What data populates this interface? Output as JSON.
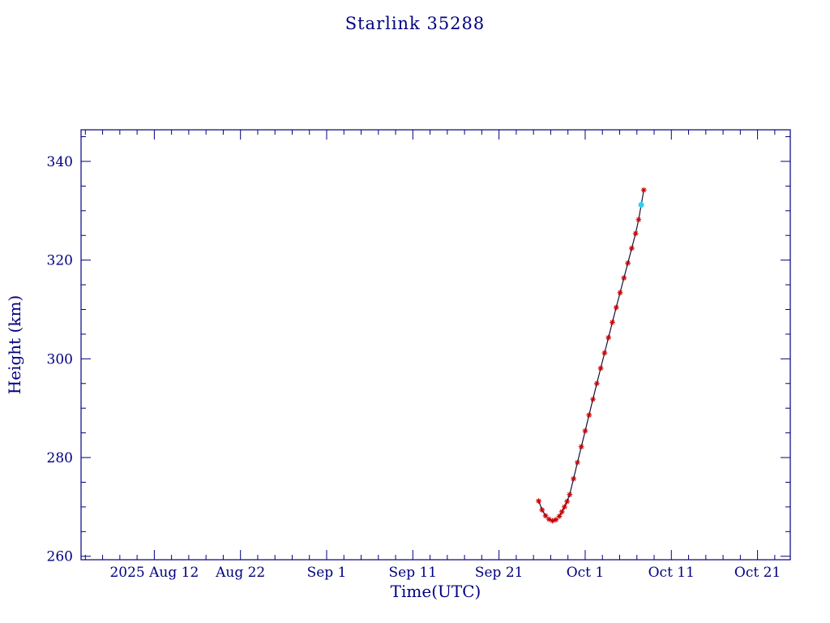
{
  "chart_data": {
    "type": "line",
    "title": "Starlink 35288",
    "xlabel": "Time(UTC)",
    "ylabel": "Height (km)",
    "x_unit": "days since 2025 Aug 4 00:00 UTC",
    "xlim": [
      -0.5,
      81.8
    ],
    "ylim": [
      259.3,
      346.4
    ],
    "x_ticks": [
      {
        "day": 8,
        "label": "2025 Aug 12"
      },
      {
        "day": 18,
        "label": "Aug 22"
      },
      {
        "day": 28,
        "label": "Sep 1"
      },
      {
        "day": 38,
        "label": "Sep 11"
      },
      {
        "day": 48,
        "label": "Sep 21"
      },
      {
        "day": 58,
        "label": "Oct 1"
      },
      {
        "day": 68,
        "label": "Oct 11"
      },
      {
        "day": 78,
        "label": "Oct 21"
      }
    ],
    "x_minor_step": 2,
    "y_major_ticks": [
      260,
      280,
      300,
      320,
      340
    ],
    "y_minor_step": 5,
    "grid": false,
    "legend": "none",
    "axis_color": "#000080",
    "line_color": "#14143c",
    "marker_color": "#cc0000",
    "highlight_color": "#30cfee",
    "marker_style": "asterisk",
    "highlight_marker_style": "filled-circle",
    "points": [
      [
        52.6,
        271.2
      ],
      [
        53.0,
        269.4
      ],
      [
        53.4,
        268.2
      ],
      [
        53.8,
        267.5
      ],
      [
        54.2,
        267.2
      ],
      [
        54.6,
        267.4
      ],
      [
        55.0,
        268.1
      ],
      [
        55.3,
        269.0
      ],
      [
        55.6,
        270.0
      ],
      [
        55.9,
        271.1
      ],
      [
        56.2,
        272.5
      ],
      [
        56.65,
        275.7
      ],
      [
        57.1,
        279.0
      ],
      [
        57.55,
        282.2
      ],
      [
        58.0,
        285.4
      ],
      [
        58.45,
        288.6
      ],
      [
        58.9,
        291.8
      ],
      [
        59.35,
        295.0
      ],
      [
        59.8,
        298.1
      ],
      [
        60.25,
        301.2
      ],
      [
        60.7,
        304.3
      ],
      [
        61.15,
        307.4
      ],
      [
        61.6,
        310.4
      ],
      [
        62.05,
        313.4
      ],
      [
        62.5,
        316.4
      ],
      [
        62.95,
        319.4
      ],
      [
        63.4,
        322.4
      ],
      [
        63.85,
        325.4
      ],
      [
        64.2,
        328.2
      ],
      [
        64.5,
        331.2
      ],
      [
        64.8,
        334.2
      ]
    ],
    "highlight_index": 29
  }
}
